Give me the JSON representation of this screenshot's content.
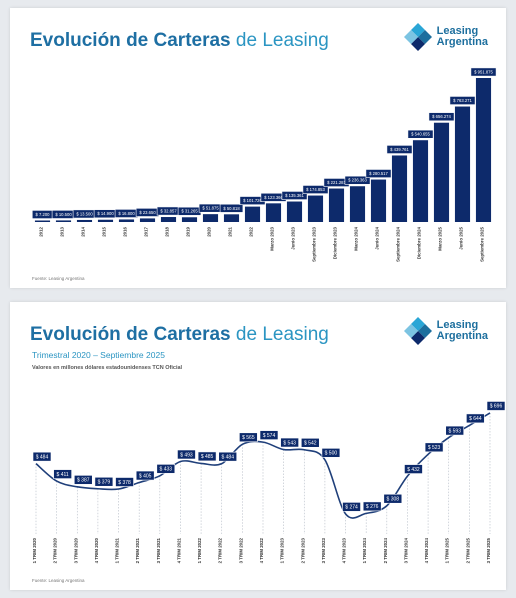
{
  "brand": {
    "line1": "Leasing",
    "line2": "Argentina"
  },
  "top_panel": {
    "title_bold": "Evolución de Carteras",
    "title_light": "de Leasing",
    "source": "Fuente: Leasing Argentina"
  },
  "bottom_panel": {
    "title_bold": "Evolución de Carteras",
    "title_light": "de Leasing",
    "subtitle": "Trimestral 2020 – Septiembre 2025",
    "note": "Valores en millones dólares estadounidenses TCN Oficial",
    "source": "Fuente: Leasing Argentina"
  },
  "colors": {
    "bar": "#0d2a6b",
    "line": "#1f3f7a",
    "label_bg": "#0d2a6b",
    "title": "#1e6fa3"
  },
  "chart_data": [
    {
      "type": "bar",
      "categories": [
        "2012",
        "2013",
        "2014",
        "2015",
        "2016",
        "2017",
        "2018",
        "2019",
        "2020",
        "2021",
        "2022",
        "Marzo 2023",
        "Junio 2023",
        "Septiembre 2023",
        "Diciembre 2023",
        "Marzo 2024",
        "Junio 2024",
        "Septiembre 2024",
        "Diciembre 2024",
        "Marzo 2025",
        "Junio 2025",
        "Septiembre 2025"
      ],
      "values": [
        7200,
        10500,
        13500,
        14900,
        16800,
        23650,
        32857,
        31265,
        51875,
        50818,
        101726,
        123366,
        135361,
        174853,
        221281,
        236363,
        280517,
        439761,
        540655,
        656274,
        763271,
        951875
      ],
      "labels": [
        "$ 7.200",
        "$ 10.500",
        "$ 13.500",
        "$ 14.900",
        "$ 16.800",
        "$ 23.650",
        "$ 32.857",
        "$ 31.265",
        "$ 51.875",
        "$ 50.818",
        "$ 101.726",
        "$ 123.366",
        "$ 135.361",
        "$ 174.853",
        "$ 221.281",
        "$ 236.363",
        "$ 280.517",
        "$ 439.761",
        "$ 540.655",
        "$ 656.274",
        "$ 763.271",
        "$ 951.875"
      ],
      "title": "",
      "xlabel": "",
      "ylabel": "",
      "grid": false
    },
    {
      "type": "line",
      "categories": [
        "1 TRIM 2020",
        "2 TRIM 2020",
        "3 TRIM 2020",
        "4 TRIM 2020",
        "1 TRIM 2021",
        "2 TRIM 2021",
        "3 TRIM 2021",
        "4 TRIM 2021",
        "1 TRIM 2022",
        "2 TRIM 2022",
        "3 TRIM 2022",
        "4 TRIM 2022",
        "1 TRIM 2023",
        "2 TRIM 2023",
        "3 TRIM 2023",
        "4 TRIM 2023",
        "1 TRIM 2024",
        "2 TRIM 2024",
        "3 TRIM 2024",
        "4 TRIM 2024",
        "1 TRIM 2025",
        "2 TRIM 2025",
        "3 TRIM 2025"
      ],
      "values": [
        484,
        411,
        387,
        379,
        378,
        405,
        433,
        493,
        485,
        484,
        565,
        574,
        543,
        542,
        500,
        274,
        276,
        308,
        432,
        523,
        593,
        644,
        696
      ],
      "labels": [
        "$ 484",
        "$ 411",
        "$ 387",
        "$ 379",
        "$ 378",
        "$ 405",
        "$ 433",
        "$ 493",
        "$ 485",
        "$ 484",
        "$ 565",
        "$ 574",
        "$ 543",
        "$ 542",
        "$ 500",
        "$ 274",
        "$ 276",
        "$ 308",
        "$ 432",
        "$ 523",
        "$ 593",
        "$ 644",
        "$ 696"
      ],
      "title": "",
      "xlabel": "",
      "ylabel": "",
      "grid": false
    }
  ]
}
